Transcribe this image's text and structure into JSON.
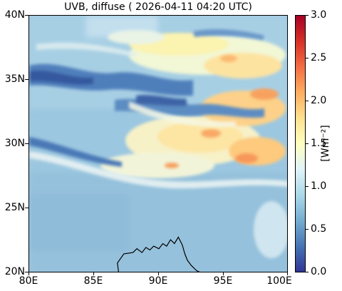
{
  "title": "UVB, diffuse ( 2026-04-11 04:20 UTC)",
  "map": {
    "lon_range": [
      80,
      100
    ],
    "lat_range": [
      20,
      40
    ],
    "lon_ticks": [
      "80E",
      "85E",
      "90E",
      "95E",
      "100E"
    ],
    "lat_ticks": [
      "40N",
      "35N",
      "30N",
      "25N",
      "20N"
    ],
    "coastline": "black"
  },
  "colorbar": {
    "colormap": "RdYlBu_r",
    "vmin": 0.0,
    "vmax": 3.0,
    "ticks": [
      "3.0",
      "2.5",
      "2.0",
      "1.5",
      "1.0",
      "0.5",
      "0.0"
    ],
    "unit_label": "[Wm⁻²]",
    "colors": [
      "#313695",
      "#4575b4",
      "#74add1",
      "#abd9e9",
      "#e0f3f8",
      "#ffffbf",
      "#fee090",
      "#fdae61",
      "#f46d43",
      "#d73027",
      "#a50026"
    ]
  }
}
